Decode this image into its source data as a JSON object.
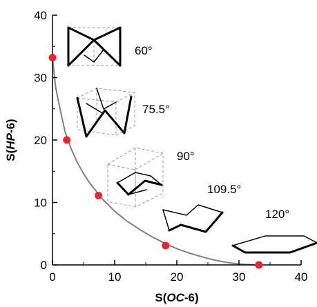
{
  "chart_data": {
    "type": "scatter",
    "xlabel": "S(OC-6)",
    "ylabel": "S(HP-6)",
    "xlabel_parts": [
      {
        "text": "S(",
        "italic": false
      },
      {
        "text": "OC",
        "italic": true
      },
      {
        "text": "-6)",
        "italic": false
      }
    ],
    "ylabel_parts": [
      {
        "text": "S(",
        "italic": false
      },
      {
        "text": "HP",
        "italic": true
      },
      {
        "text": "-6)",
        "italic": false
      }
    ],
    "xlim": [
      0,
      40
    ],
    "ylim": [
      0,
      40
    ],
    "xticks": [
      0,
      10,
      20,
      30,
      40
    ],
    "yticks": [
      0,
      10,
      20,
      30,
      40
    ],
    "grid": false,
    "series": [
      {
        "type": "scatter",
        "color": "#e8262d",
        "points": [
          {
            "x": 0,
            "y": 33.2
          },
          {
            "x": 2.3,
            "y": 20.0
          },
          {
            "x": 7.4,
            "y": 11.1
          },
          {
            "x": 18.2,
            "y": 3.1
          },
          {
            "x": 33.2,
            "y": 0
          }
        ]
      },
      {
        "type": "line",
        "color": "#808080",
        "x": [
          0,
          0.5,
          1,
          2,
          3,
          4,
          5,
          6,
          8,
          10,
          12,
          14,
          16,
          18,
          20,
          22,
          24,
          26,
          28,
          30,
          32,
          33.2
        ],
        "y": [
          33.2,
          28.5,
          26.0,
          21.4,
          18.6,
          16.4,
          14.6,
          13.1,
          10.6,
          8.6,
          7.0,
          5.7,
          4.5,
          3.5,
          2.6,
          1.9,
          1.3,
          0.8,
          0.4,
          0.15,
          0.02,
          0
        ]
      }
    ],
    "annotations": [
      {
        "text": "60°",
        "icon": "trigonal-prism-shape-icon"
      },
      {
        "text": "75.5°",
        "icon": "twisted-prism-shape-icon"
      },
      {
        "text": "90°",
        "icon": "chair-in-cube-shape-icon"
      },
      {
        "text": "109.5°",
        "icon": "chair-hexagon-shape-icon"
      },
      {
        "text": "120°",
        "icon": "flat-hexagon-shape-icon"
      }
    ]
  }
}
